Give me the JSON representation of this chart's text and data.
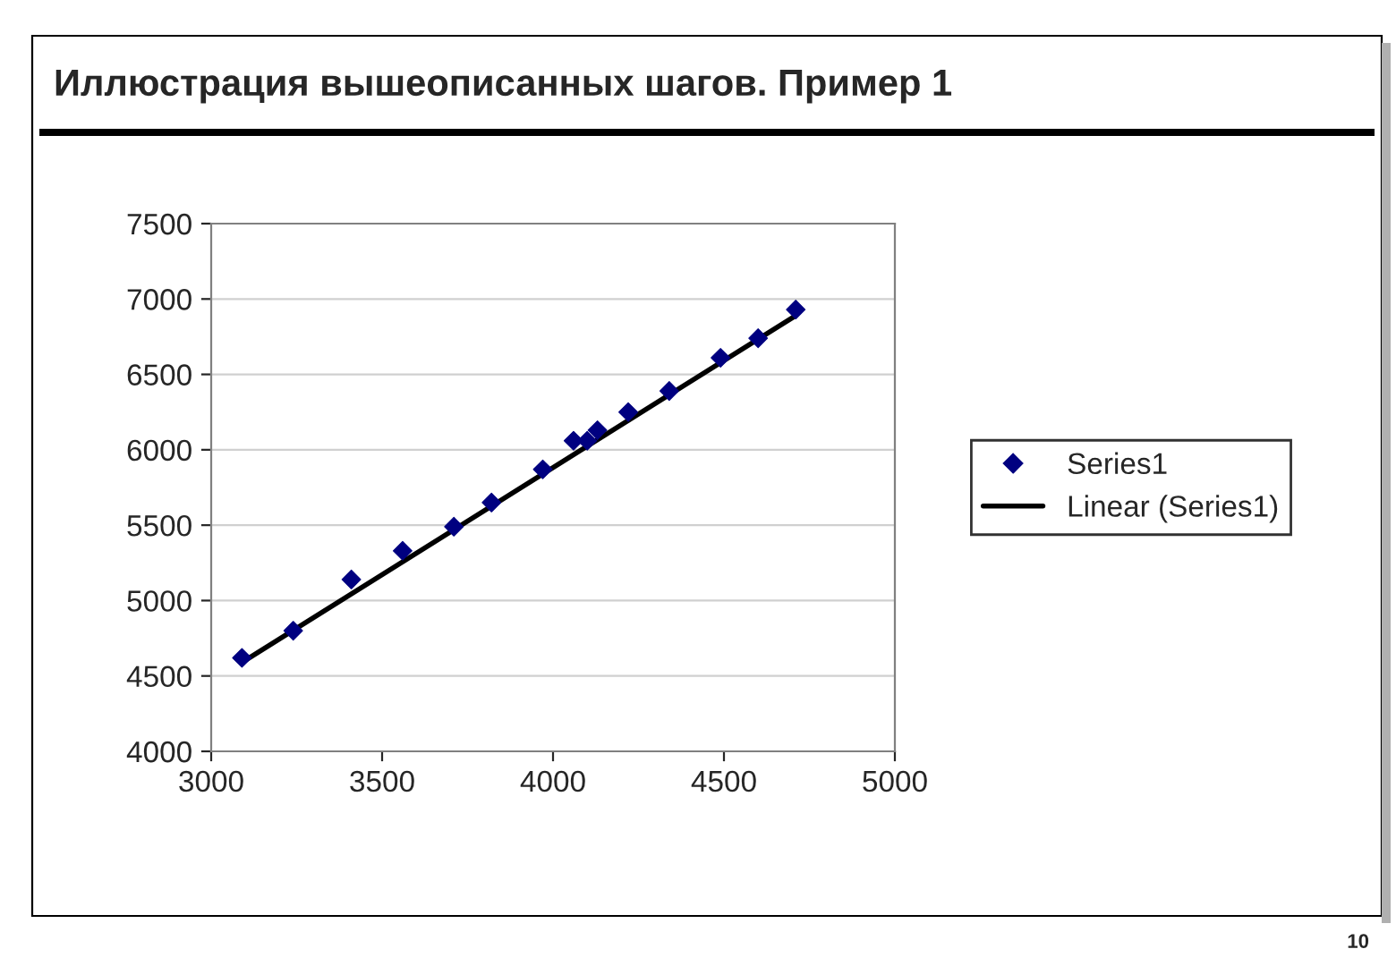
{
  "chart_data": {
    "type": "scatter",
    "title": "Иллюстрация вышеописанных шагов. Пример 1",
    "series": [
      {
        "name": "Series1",
        "color": "#000080",
        "marker": "diamond",
        "x": [
          3090,
          3240,
          3410,
          3560,
          3710,
          3820,
          3970,
          4060,
          4100,
          4130,
          4220,
          4340,
          4490,
          4600,
          4710
        ],
        "values": [
          4620,
          4800,
          5140,
          5330,
          5490,
          5650,
          5870,
          6060,
          6060,
          6130,
          6250,
          6390,
          6610,
          6740,
          6930
        ]
      },
      {
        "name": "Linear (Series1)",
        "type": "line",
        "color": "#000000",
        "line_style": "solid",
        "x": [
          3090,
          4710
        ],
        "values": [
          4590,
          6890
        ]
      }
    ],
    "xlim": [
      3000,
      5000
    ],
    "xticks": [
      3000,
      3500,
      4000,
      4500,
      5000
    ],
    "ylim": [
      4000,
      7500
    ],
    "yticks": [
      4000,
      4500,
      5000,
      5500,
      6000,
      6500,
      7000,
      7500
    ],
    "grid": "y",
    "legend": "right",
    "annotations": [
      "10"
    ]
  }
}
